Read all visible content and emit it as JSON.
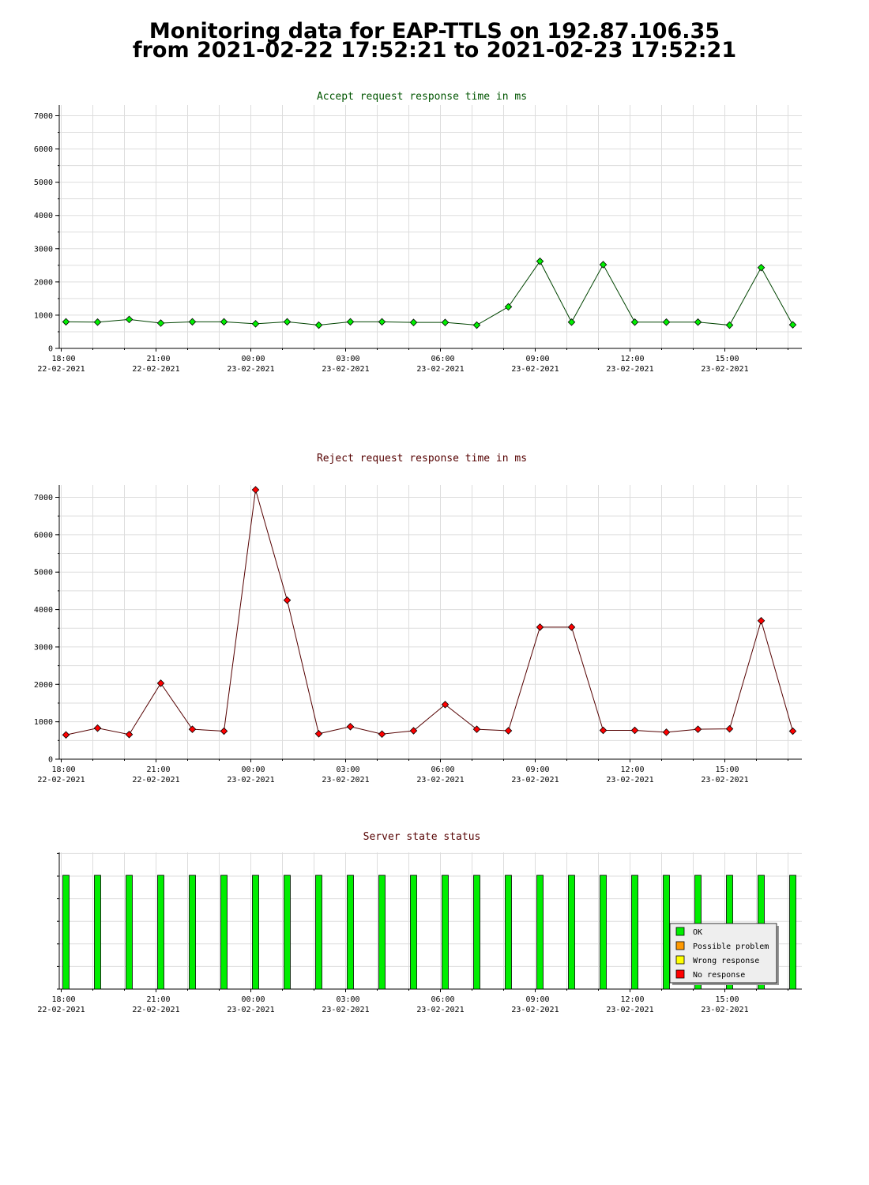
{
  "page": {
    "title_line_1": "Monitoring data for EAP-TTLS on 192.87.106.35",
    "title_line_2": "from 2021-02-22 17:52:21 to 2021-02-23 17:52:21"
  },
  "colors": {
    "accept_marker": "#00ee00",
    "accept_line": "#004400",
    "accept_title": "#005500",
    "reject_marker": "#ff0000",
    "reject_line": "#550000",
    "reject_title": "#550000",
    "status_title": "#550000",
    "ok": "#00ee00",
    "possible_problem": "#ff9900",
    "wrong_response": "#ffff00",
    "no_response": "#ff0000",
    "grid": "#dddddd"
  },
  "chart_data": [
    {
      "id": "accept",
      "type": "line",
      "title": "Accept request response time in ms",
      "ylim": [
        0,
        7300
      ],
      "yticks": [
        "0",
        "1000",
        "2000",
        "3000",
        "4000",
        "5000",
        "6000",
        "7000"
      ],
      "x_tick_time": [
        "18:00",
        "21:00",
        "00:00",
        "03:00",
        "06:00",
        "09:00",
        "12:00",
        "15:00"
      ],
      "x_tick_date": [
        "22-02-2021",
        "22-02-2021",
        "23-02-2021",
        "23-02-2021",
        "23-02-2021",
        "23-02-2021",
        "23-02-2021",
        "23-02-2021"
      ],
      "x_hours": [
        0.0,
        1.0,
        2.0,
        3.0,
        4.0,
        5.0,
        6.0,
        7.0,
        8.0,
        9.0,
        10.0,
        11.0,
        12.0,
        13.0,
        14.0,
        15.0,
        16.0,
        17.0,
        18.0,
        19.0,
        20.0,
        21.0,
        22.0,
        23.0
      ],
      "values": [
        800,
        790,
        870,
        760,
        800,
        800,
        740,
        800,
        700,
        800,
        800,
        780,
        780,
        700,
        1250,
        2620,
        790,
        2520,
        790,
        790,
        790,
        700,
        2430,
        710
      ],
      "grid": true
    },
    {
      "id": "reject",
      "type": "line",
      "title": "Reject request response time in ms",
      "ylim": [
        0,
        7300
      ],
      "yticks": [
        "0",
        "1000",
        "2000",
        "3000",
        "4000",
        "5000",
        "6000",
        "7000"
      ],
      "x_tick_time": [
        "18:00",
        "21:00",
        "00:00",
        "03:00",
        "06:00",
        "09:00",
        "12:00",
        "15:00"
      ],
      "x_tick_date": [
        "22-02-2021",
        "22-02-2021",
        "23-02-2021",
        "23-02-2021",
        "23-02-2021",
        "23-02-2021",
        "23-02-2021",
        "23-02-2021"
      ],
      "x_hours": [
        0.0,
        1.0,
        2.0,
        3.0,
        4.0,
        5.0,
        6.0,
        7.0,
        8.0,
        9.0,
        10.0,
        11.0,
        12.0,
        13.0,
        14.0,
        15.0,
        16.0,
        17.0,
        18.0,
        19.0,
        20.0,
        21.0,
        22.0,
        23.0
      ],
      "values": [
        650,
        830,
        660,
        2030,
        800,
        750,
        7200,
        4250,
        680,
        870,
        670,
        760,
        1460,
        800,
        760,
        3530,
        3530,
        770,
        770,
        720,
        800,
        810,
        3700,
        750
      ],
      "grid": true
    },
    {
      "id": "status",
      "type": "bar",
      "title": "Server state status",
      "x_tick_time": [
        "18:00",
        "21:00",
        "00:00",
        "03:00",
        "06:00",
        "09:00",
        "12:00",
        "15:00"
      ],
      "x_tick_date": [
        "22-02-2021",
        "22-02-2021",
        "23-02-2021",
        "23-02-2021",
        "23-02-2021",
        "23-02-2021",
        "23-02-2021",
        "23-02-2021"
      ],
      "x_hours": [
        0.0,
        1.0,
        2.0,
        3.0,
        4.0,
        5.0,
        6.0,
        7.0,
        8.0,
        9.0,
        10.0,
        11.0,
        12.0,
        13.0,
        14.0,
        15.0,
        16.0,
        17.0,
        18.0,
        19.0,
        20.0,
        21.0,
        22.0,
        23.0
      ],
      "states": [
        "OK",
        "OK",
        "OK",
        "OK",
        "OK",
        "OK",
        "OK",
        "OK",
        "OK",
        "OK",
        "OK",
        "OK",
        "OK",
        "OK",
        "OK",
        "OK",
        "OK",
        "OK",
        "OK",
        "OK",
        "OK",
        "OK",
        "OK",
        "OK"
      ],
      "legend": [
        {
          "label": "OK",
          "color": "#00ee00"
        },
        {
          "label": "Possible problem",
          "color": "#ff9900"
        },
        {
          "label": "Wrong response",
          "color": "#ffff00"
        },
        {
          "label": "No response",
          "color": "#ff0000"
        }
      ],
      "legend_position": "bottom-right",
      "grid": true
    }
  ]
}
